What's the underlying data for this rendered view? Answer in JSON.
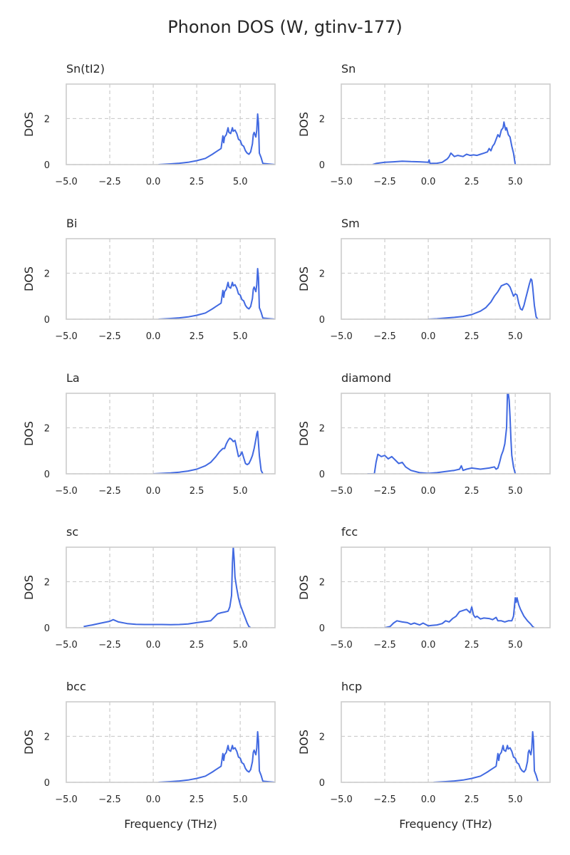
{
  "figure": {
    "title": "Phonon DOS (W, gtinv-177)"
  },
  "chart_data": {
    "type": "line",
    "title": "Phonon DOS (W, gtinv-177)",
    "xlabel": "Frequency (THz)",
    "ylabel": "DOS",
    "xlim": [
      -5,
      7
    ],
    "ylim": [
      0,
      3.5
    ],
    "xticks": [
      -5,
      -2.5,
      0,
      2.5,
      5
    ],
    "xtick_labels": [
      "−5.0",
      "−2.5",
      "0.0",
      "2.5",
      "5.0"
    ],
    "yticks": [
      0,
      2
    ],
    "ytick_labels": [
      "0",
      "2"
    ],
    "grid": true,
    "color": "#4169e1",
    "panels": [
      {
        "title": "Sn(tI2)",
        "x": [
          0.3,
          1.0,
          1.5,
          2.0,
          2.5,
          3.0,
          3.4,
          3.6,
          3.9,
          4.0,
          4.05,
          4.1,
          4.2,
          4.3,
          4.35,
          4.45,
          4.55,
          4.6,
          4.7,
          4.8,
          4.9,
          5.0,
          5.1,
          5.2,
          5.3,
          5.4,
          5.5,
          5.6,
          5.7,
          5.75,
          5.8,
          5.9,
          5.95,
          6.0,
          6.05,
          6.1,
          6.2,
          6.3,
          7.0
        ],
        "y": [
          0.0,
          0.03,
          0.06,
          0.1,
          0.17,
          0.27,
          0.45,
          0.55,
          0.7,
          1.25,
          0.95,
          1.2,
          1.3,
          1.6,
          1.4,
          1.35,
          1.6,
          1.45,
          1.5,
          1.35,
          1.1,
          1.05,
          0.85,
          0.8,
          0.6,
          0.5,
          0.45,
          0.55,
          0.9,
          1.3,
          1.4,
          1.2,
          1.5,
          2.2,
          1.8,
          0.5,
          0.3,
          0.05,
          0.0
        ]
      },
      {
        "title": "Sn",
        "x": [
          -3.2,
          -3.0,
          -2.5,
          -2.0,
          -1.5,
          -1.0,
          -0.5,
          0.0,
          0.05,
          0.1,
          0.5,
          0.8,
          1.0,
          1.1,
          1.2,
          1.3,
          1.5,
          1.7,
          2.0,
          2.2,
          2.4,
          2.6,
          2.8,
          3.0,
          3.2,
          3.4,
          3.5,
          3.6,
          3.7,
          3.8,
          3.9,
          4.0,
          4.1,
          4.2,
          4.3,
          4.35,
          4.45,
          4.5,
          4.6,
          4.7,
          4.8,
          4.9,
          5.0
        ],
        "y": [
          0.0,
          0.05,
          0.1,
          0.12,
          0.15,
          0.13,
          0.12,
          0.1,
          0.2,
          0.05,
          0.06,
          0.1,
          0.2,
          0.25,
          0.35,
          0.5,
          0.35,
          0.4,
          0.35,
          0.45,
          0.4,
          0.42,
          0.4,
          0.45,
          0.5,
          0.55,
          0.7,
          0.6,
          0.8,
          0.9,
          1.1,
          1.3,
          1.2,
          1.5,
          1.6,
          1.85,
          1.5,
          1.6,
          1.3,
          1.2,
          0.8,
          0.5,
          0.0
        ]
      },
      {
        "title": "Bi",
        "x": [
          0.3,
          1.0,
          1.5,
          2.0,
          2.5,
          3.0,
          3.4,
          3.6,
          3.9,
          4.0,
          4.05,
          4.1,
          4.2,
          4.3,
          4.35,
          4.45,
          4.55,
          4.6,
          4.7,
          4.8,
          4.9,
          5.0,
          5.1,
          5.2,
          5.3,
          5.4,
          5.5,
          5.6,
          5.7,
          5.75,
          5.8,
          5.9,
          5.95,
          6.0,
          6.05,
          6.1,
          6.2,
          6.3,
          7.0
        ],
        "y": [
          0.0,
          0.03,
          0.06,
          0.1,
          0.17,
          0.27,
          0.45,
          0.55,
          0.7,
          1.25,
          0.95,
          1.2,
          1.3,
          1.6,
          1.4,
          1.35,
          1.6,
          1.45,
          1.5,
          1.35,
          1.1,
          1.05,
          0.85,
          0.8,
          0.6,
          0.5,
          0.45,
          0.55,
          0.9,
          1.3,
          1.4,
          1.2,
          1.5,
          2.2,
          1.8,
          0.5,
          0.3,
          0.05,
          0.0
        ]
      },
      {
        "title": "Sm",
        "x": [
          0.0,
          0.5,
          1.0,
          1.5,
          2.0,
          2.5,
          3.0,
          3.3,
          3.6,
          3.8,
          4.0,
          4.2,
          4.35,
          4.5,
          4.6,
          4.7,
          4.8,
          4.9,
          5.0,
          5.1,
          5.2,
          5.3,
          5.4,
          5.5,
          5.6,
          5.7,
          5.8,
          5.9,
          5.95,
          6.0,
          6.1,
          6.2,
          6.3
        ],
        "y": [
          0.0,
          0.02,
          0.05,
          0.08,
          0.12,
          0.2,
          0.35,
          0.5,
          0.75,
          1.0,
          1.2,
          1.45,
          1.5,
          1.55,
          1.5,
          1.4,
          1.2,
          1.0,
          1.1,
          1.05,
          0.7,
          0.45,
          0.4,
          0.6,
          0.9,
          1.2,
          1.5,
          1.75,
          1.7,
          1.4,
          0.6,
          0.1,
          0.0
        ]
      },
      {
        "title": "La",
        "x": [
          0.0,
          0.5,
          1.0,
          1.5,
          2.0,
          2.5,
          3.0,
          3.3,
          3.6,
          3.8,
          4.0,
          4.1,
          4.2,
          4.3,
          4.4,
          4.5,
          4.6,
          4.7,
          4.8,
          4.9,
          5.0,
          5.1,
          5.2,
          5.3,
          5.4,
          5.5,
          5.6,
          5.7,
          5.8,
          5.9,
          5.95,
          6.0,
          6.1,
          6.2,
          6.3
        ],
        "y": [
          0.0,
          0.02,
          0.04,
          0.07,
          0.12,
          0.2,
          0.35,
          0.5,
          0.75,
          0.95,
          1.1,
          1.1,
          1.3,
          1.45,
          1.55,
          1.5,
          1.4,
          1.45,
          1.1,
          0.75,
          0.8,
          0.95,
          0.7,
          0.45,
          0.4,
          0.45,
          0.6,
          0.8,
          1.1,
          1.5,
          1.75,
          1.85,
          0.8,
          0.15,
          0.0
        ]
      },
      {
        "title": "diamond",
        "x": [
          -3.5,
          -3.1,
          -3.0,
          -2.9,
          -2.7,
          -2.5,
          -2.3,
          -2.1,
          -1.9,
          -1.7,
          -1.5,
          -1.3,
          -1.0,
          -0.5,
          0.0,
          0.5,
          1.0,
          1.5,
          1.8,
          1.9,
          2.0,
          2.2,
          2.5,
          3.0,
          3.5,
          3.8,
          3.9,
          4.0,
          4.1,
          4.2,
          4.3,
          4.4,
          4.5,
          4.55,
          4.6,
          4.65,
          4.7,
          4.75,
          4.8,
          4.9,
          5.0
        ],
        "y": [
          0.0,
          0.0,
          0.5,
          0.85,
          0.75,
          0.8,
          0.65,
          0.75,
          0.6,
          0.45,
          0.5,
          0.3,
          0.15,
          0.05,
          0.02,
          0.05,
          0.1,
          0.15,
          0.2,
          0.35,
          0.15,
          0.2,
          0.25,
          0.2,
          0.25,
          0.3,
          0.2,
          0.25,
          0.5,
          0.8,
          1.0,
          1.3,
          2.0,
          3.5,
          3.5,
          3.2,
          2.5,
          1.5,
          0.8,
          0.3,
          0.0
        ]
      },
      {
        "title": "sc",
        "x": [
          -4.0,
          -3.5,
          -3.0,
          -2.5,
          -2.3,
          -2.0,
          -1.5,
          -1.0,
          -0.5,
          0.0,
          0.5,
          1.0,
          1.5,
          2.0,
          2.5,
          3.0,
          3.3,
          3.5,
          3.7,
          3.9,
          4.1,
          4.3,
          4.4,
          4.5,
          4.55,
          4.6,
          4.65,
          4.7,
          4.8,
          4.9,
          5.0,
          5.1,
          5.2,
          5.3,
          5.4,
          5.5,
          5.6
        ],
        "y": [
          0.05,
          0.12,
          0.2,
          0.28,
          0.35,
          0.25,
          0.18,
          0.15,
          0.14,
          0.14,
          0.14,
          0.13,
          0.14,
          0.16,
          0.22,
          0.27,
          0.3,
          0.45,
          0.6,
          0.65,
          0.68,
          0.72,
          0.9,
          1.4,
          2.8,
          3.5,
          3.0,
          2.2,
          1.7,
          1.3,
          1.0,
          0.8,
          0.6,
          0.4,
          0.2,
          0.05,
          0.0
        ]
      },
      {
        "title": "fcc",
        "x": [
          -2.5,
          -2.2,
          -2.0,
          -1.8,
          -1.5,
          -1.2,
          -1.0,
          -0.8,
          -0.5,
          -0.3,
          0.0,
          0.2,
          0.5,
          0.8,
          1.0,
          1.2,
          1.4,
          1.6,
          1.8,
          2.0,
          2.2,
          2.4,
          2.5,
          2.6,
          2.7,
          2.8,
          3.0,
          3.2,
          3.5,
          3.7,
          3.9,
          4.0,
          4.2,
          4.4,
          4.6,
          4.8,
          4.9,
          5.0,
          5.05,
          5.1,
          5.2,
          5.3,
          5.4,
          5.5,
          5.7,
          5.9,
          6.0,
          6.1
        ],
        "y": [
          0.0,
          0.05,
          0.2,
          0.3,
          0.25,
          0.22,
          0.15,
          0.2,
          0.12,
          0.2,
          0.08,
          0.1,
          0.12,
          0.18,
          0.3,
          0.25,
          0.4,
          0.5,
          0.7,
          0.75,
          0.8,
          0.65,
          0.9,
          0.55,
          0.45,
          0.5,
          0.38,
          0.42,
          0.4,
          0.35,
          0.45,
          0.3,
          0.3,
          0.25,
          0.3,
          0.3,
          0.5,
          1.3,
          1.1,
          1.3,
          1.0,
          0.8,
          0.65,
          0.5,
          0.3,
          0.15,
          0.05,
          0.0
        ]
      },
      {
        "title": "bcc",
        "x": [
          0.3,
          1.0,
          1.5,
          2.0,
          2.5,
          3.0,
          3.4,
          3.6,
          3.9,
          4.0,
          4.05,
          4.1,
          4.2,
          4.3,
          4.35,
          4.45,
          4.55,
          4.6,
          4.7,
          4.8,
          4.9,
          5.0,
          5.1,
          5.2,
          5.3,
          5.4,
          5.5,
          5.6,
          5.7,
          5.75,
          5.8,
          5.9,
          5.95,
          6.0,
          6.05,
          6.1,
          6.2,
          6.3,
          7.0
        ],
        "y": [
          0.0,
          0.03,
          0.06,
          0.1,
          0.17,
          0.27,
          0.45,
          0.55,
          0.7,
          1.25,
          0.95,
          1.2,
          1.3,
          1.6,
          1.4,
          1.35,
          1.6,
          1.45,
          1.5,
          1.35,
          1.1,
          1.05,
          0.85,
          0.8,
          0.6,
          0.5,
          0.45,
          0.55,
          0.9,
          1.3,
          1.4,
          1.2,
          1.5,
          2.2,
          1.8,
          0.5,
          0.3,
          0.05,
          0.0
        ]
      },
      {
        "title": "hcp",
        "x": [
          0.3,
          1.0,
          1.5,
          2.0,
          2.5,
          3.0,
          3.4,
          3.6,
          3.9,
          4.0,
          4.05,
          4.1,
          4.2,
          4.3,
          4.35,
          4.45,
          4.55,
          4.6,
          4.7,
          4.8,
          4.9,
          5.0,
          5.1,
          5.2,
          5.3,
          5.4,
          5.5,
          5.6,
          5.7,
          5.75,
          5.8,
          5.9,
          5.95,
          6.0,
          6.05,
          6.1,
          6.2,
          6.3
        ],
        "y": [
          0.0,
          0.03,
          0.06,
          0.1,
          0.17,
          0.27,
          0.45,
          0.55,
          0.7,
          1.25,
          0.95,
          1.2,
          1.3,
          1.6,
          1.4,
          1.35,
          1.6,
          1.45,
          1.5,
          1.35,
          1.1,
          1.05,
          0.85,
          0.8,
          0.6,
          0.5,
          0.45,
          0.55,
          0.9,
          1.3,
          1.4,
          1.2,
          1.5,
          2.2,
          1.8,
          0.5,
          0.3,
          0.05
        ]
      }
    ]
  }
}
